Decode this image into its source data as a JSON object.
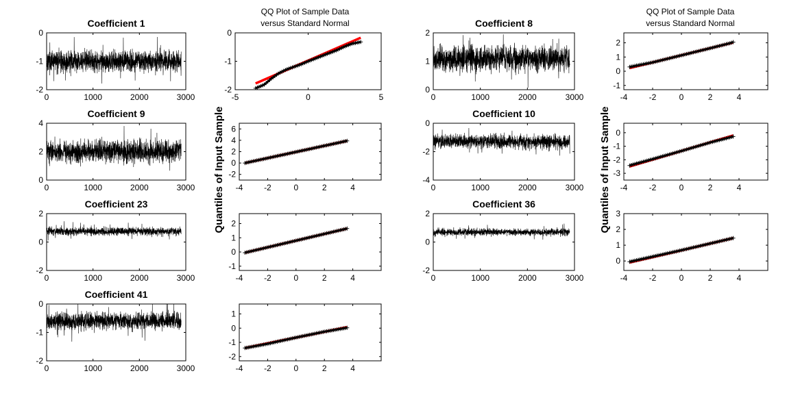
{
  "figure": {
    "qq_title_line1": "QQ Plot of Sample Data",
    "qq_title_line2": "versus Standard Normal",
    "qq_ylabel": "Quantiles of Input Sample"
  },
  "chart_data": [
    {
      "id": "ts-1",
      "type": "line",
      "title": "Coefficient 1",
      "n": 2900,
      "mean": -1.0,
      "amp": 0.3,
      "spike": 0.75,
      "xlim": [
        0,
        3000
      ],
      "ylim": [
        -2,
        0
      ],
      "xticks": [
        "0",
        "1000",
        "2000",
        "3000"
      ],
      "yticks": [
        "-2",
        "-1",
        "0"
      ]
    },
    {
      "id": "qq-1",
      "type": "scatter",
      "title": "",
      "xlim": [
        -5,
        5
      ],
      "ylim": [
        -2,
        0
      ],
      "xticks": [
        "-5",
        "0",
        "5"
      ],
      "yticks": [
        "-2",
        "-1",
        "0"
      ],
      "line": [
        [
          -3.6,
          -1.78
        ],
        [
          3.6,
          -0.17
        ]
      ],
      "samples": [
        [
          -3.6,
          -1.95
        ],
        [
          -3.0,
          -1.82
        ],
        [
          -2.5,
          -1.6
        ],
        [
          -2.0,
          -1.42
        ],
        [
          -1.5,
          -1.29
        ],
        [
          -1.0,
          -1.2
        ],
        [
          -0.5,
          -1.11
        ],
        [
          0.0,
          -1.0
        ],
        [
          0.5,
          -0.9
        ],
        [
          1.0,
          -0.8
        ],
        [
          1.5,
          -0.7
        ],
        [
          2.0,
          -0.6
        ],
        [
          2.5,
          -0.48
        ],
        [
          3.0,
          -0.38
        ],
        [
          3.6,
          -0.32
        ]
      ]
    },
    {
      "id": "ts-8",
      "type": "line",
      "title": "Coefficient 8",
      "n": 2900,
      "mean": 1.1,
      "amp": 0.35,
      "spike": 0.8,
      "xlim": [
        0,
        3000
      ],
      "ylim": [
        0,
        2
      ],
      "xticks": [
        "0",
        "1000",
        "2000",
        "3000"
      ],
      "yticks": [
        "0",
        "1",
        "2"
      ]
    },
    {
      "id": "qq-8",
      "type": "scatter",
      "title": "",
      "xlim": [
        -4,
        6
      ],
      "ylim": [
        -1.3,
        2.7
      ],
      "xticks": [
        "-4",
        "-2",
        "0",
        "2",
        "4"
      ],
      "yticks": [
        "-1",
        "0",
        "1",
        "2"
      ],
      "line": [
        [
          -3.6,
          0.22
        ],
        [
          3.6,
          2.02
        ]
      ],
      "samples": [
        [
          -3.6,
          0.3
        ],
        [
          -2.0,
          0.62
        ],
        [
          0.0,
          1.12
        ],
        [
          2.0,
          1.62
        ],
        [
          3.4,
          1.98
        ],
        [
          3.6,
          2.05
        ]
      ]
    },
    {
      "id": "ts-9",
      "type": "line",
      "title": "Coefficient 9",
      "n": 2900,
      "mean": 2.0,
      "amp": 0.65,
      "spike": 1.3,
      "xlim": [
        0,
        3000
      ],
      "ylim": [
        0,
        4
      ],
      "xticks": [
        "0",
        "1000",
        "2000",
        "3000"
      ],
      "yticks": [
        "0",
        "2",
        "4"
      ]
    },
    {
      "id": "qq-9",
      "type": "scatter",
      "title": "",
      "xlim": [
        -4,
        6
      ],
      "ylim": [
        -3,
        7
      ],
      "xticks": [
        "-4",
        "-2",
        "0",
        "2",
        "4"
      ],
      "yticks": [
        "-2",
        "0",
        "2",
        "4",
        "6"
      ],
      "line": [
        [
          -3.6,
          0.0
        ],
        [
          3.6,
          3.9
        ]
      ],
      "samples": [
        [
          -3.6,
          0.0
        ],
        [
          0.0,
          1.95
        ],
        [
          3.6,
          3.9
        ]
      ]
    },
    {
      "id": "ts-10",
      "type": "line",
      "title": "Coefficient 10",
      "n": 2900,
      "mean": -1.3,
      "amp": 0.4,
      "spike": 0.9,
      "xlim": [
        0,
        3000
      ],
      "ylim": [
        -4,
        0
      ],
      "xticks": [
        "0",
        "1000",
        "2000",
        "3000"
      ],
      "yticks": [
        "-4",
        "-2",
        "0"
      ]
    },
    {
      "id": "qq-10",
      "type": "scatter",
      "title": "",
      "xlim": [
        -4,
        6
      ],
      "ylim": [
        -3.5,
        0.7
      ],
      "xticks": [
        "-4",
        "-2",
        "0",
        "2",
        "4"
      ],
      "yticks": [
        "-3",
        "-2",
        "-1",
        "0"
      ],
      "line": [
        [
          -3.6,
          -2.5
        ],
        [
          3.6,
          -0.2
        ]
      ],
      "samples": [
        [
          -3.6,
          -2.42
        ],
        [
          -2.0,
          -1.95
        ],
        [
          0.0,
          -1.35
        ],
        [
          2.0,
          -0.72
        ],
        [
          3.6,
          -0.28
        ]
      ]
    },
    {
      "id": "ts-23",
      "type": "line",
      "title": "Coefficient 23",
      "n": 2900,
      "mean": 0.75,
      "amp": 0.22,
      "spike": 0.55,
      "xlim": [
        0,
        3000
      ],
      "ylim": [
        -2,
        2
      ],
      "xticks": [
        "0",
        "1000",
        "2000",
        "3000"
      ],
      "yticks": [
        "-2",
        "0",
        "2"
      ]
    },
    {
      "id": "qq-23",
      "type": "scatter",
      "title": "",
      "xlim": [
        -4,
        6
      ],
      "ylim": [
        -1.3,
        2.7
      ],
      "xticks": [
        "-4",
        "-2",
        "0",
        "2",
        "4"
      ],
      "yticks": [
        "-1",
        "0",
        "1",
        "2"
      ],
      "line": [
        [
          -3.6,
          -0.05
        ],
        [
          3.6,
          1.65
        ]
      ],
      "samples": [
        [
          -3.6,
          -0.05
        ],
        [
          0.0,
          0.8
        ],
        [
          3.6,
          1.65
        ]
      ]
    },
    {
      "id": "ts-36",
      "type": "line",
      "title": "Coefficient 36",
      "n": 2900,
      "mean": 0.7,
      "amp": 0.2,
      "spike": 0.5,
      "xlim": [
        0,
        3000
      ],
      "ylim": [
        -2,
        2
      ],
      "xticks": [
        "0",
        "1000",
        "2000",
        "3000"
      ],
      "yticks": [
        "-2",
        "0",
        "2"
      ]
    },
    {
      "id": "qq-36",
      "type": "scatter",
      "title": "",
      "xlim": [
        -4,
        6
      ],
      "ylim": [
        -0.6,
        3.0
      ],
      "xticks": [
        "-4",
        "-2",
        "0",
        "2",
        "4"
      ],
      "yticks": [
        "0",
        "1",
        "2",
        "3"
      ],
      "line": [
        [
          -3.6,
          -0.1
        ],
        [
          3.6,
          1.45
        ]
      ],
      "samples": [
        [
          -3.6,
          -0.05
        ],
        [
          0.0,
          0.68
        ],
        [
          3.6,
          1.45
        ]
      ]
    },
    {
      "id": "ts-41",
      "type": "line",
      "title": "Coefficient 41",
      "n": 2900,
      "mean": -0.6,
      "amp": 0.25,
      "spike": 0.65,
      "xlim": [
        0,
        3000
      ],
      "ylim": [
        -2,
        0
      ],
      "xticks": [
        "0",
        "1000",
        "2000",
        "3000"
      ],
      "yticks": [
        "-2",
        "-1",
        "0"
      ]
    },
    {
      "id": "qq-41",
      "type": "scatter",
      "title": "",
      "xlim": [
        -4,
        6
      ],
      "ylim": [
        -2.3,
        1.7
      ],
      "xticks": [
        "-4",
        "-2",
        "0",
        "2",
        "4"
      ],
      "yticks": [
        "-2",
        "-1",
        "0",
        "1"
      ],
      "line": [
        [
          -3.6,
          -1.4
        ],
        [
          3.6,
          0.07
        ]
      ],
      "samples": [
        [
          -3.6,
          -1.4
        ],
        [
          -2.0,
          -1.1
        ],
        [
          0.0,
          -0.66
        ],
        [
          2.0,
          -0.25
        ],
        [
          3.6,
          0.03
        ]
      ]
    }
  ]
}
